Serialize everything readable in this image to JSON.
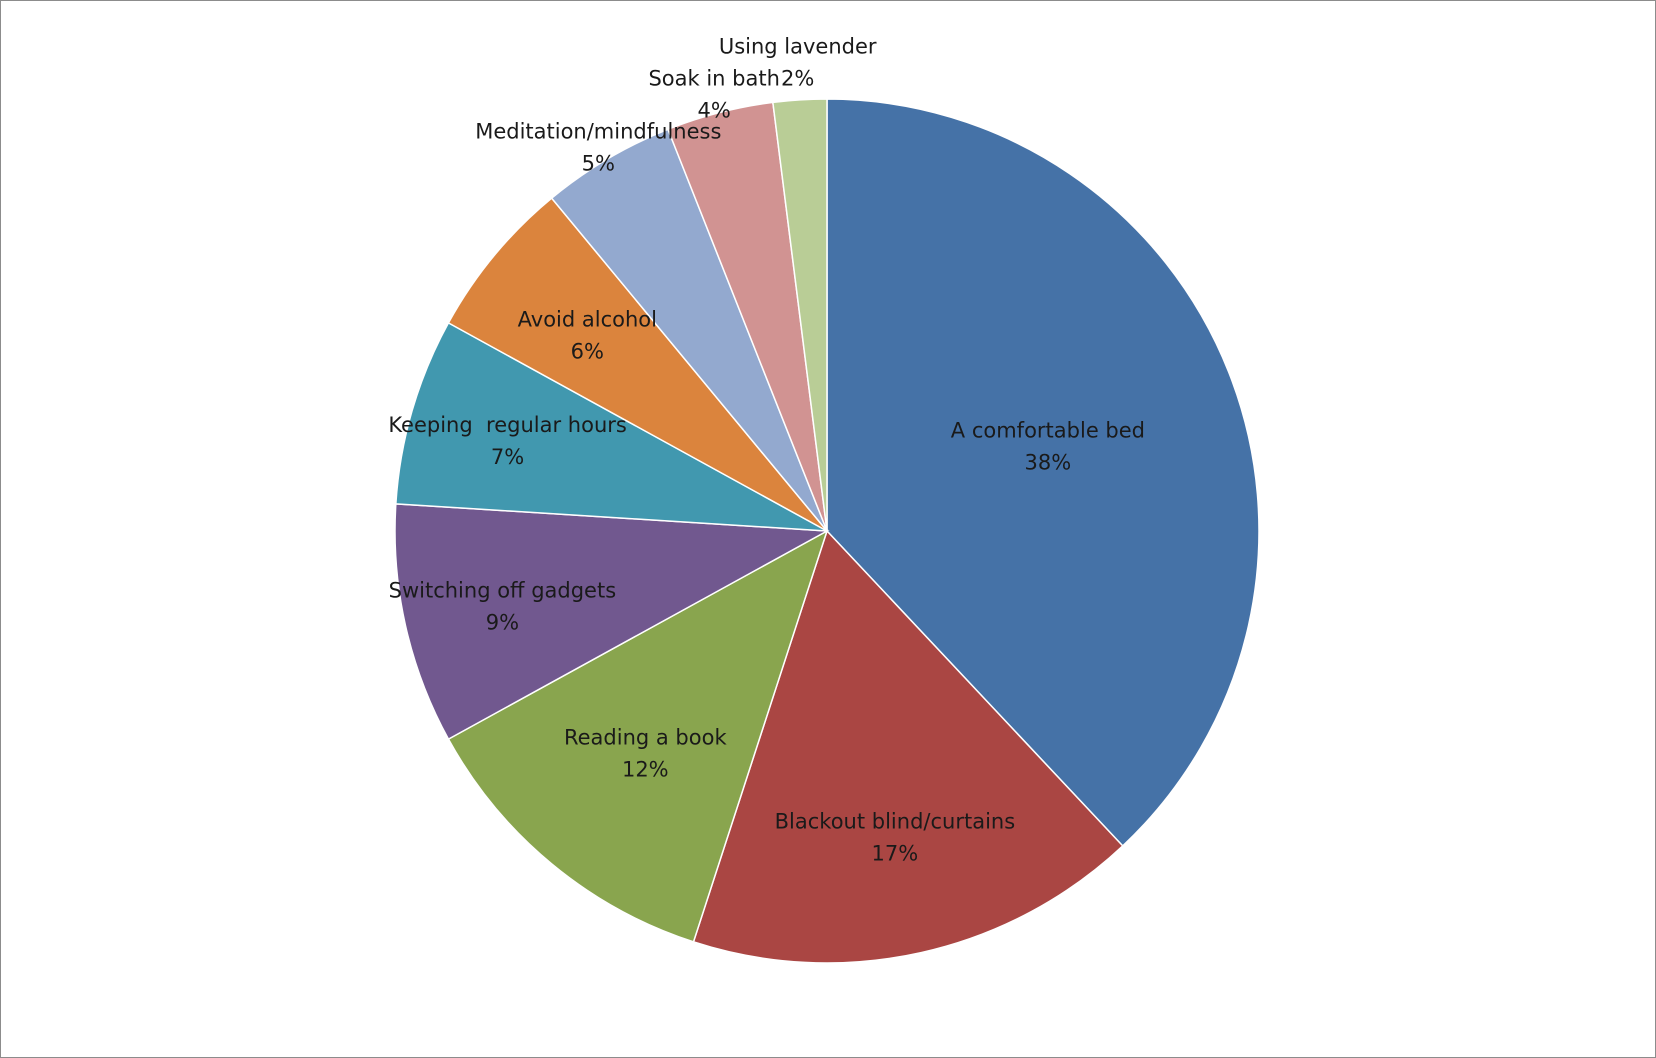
{
  "chart_data": {
    "type": "pie",
    "title": "",
    "start": "12 o'clock",
    "direction": "clockwise",
    "legend": "none",
    "slices": [
      {
        "label": "A comfortable bed",
        "value_text": "38%",
        "value": 38,
        "color": "#4572a7"
      },
      {
        "label": "Blackout blind/curtains",
        "value_text": "17%",
        "value": 17,
        "color": "#aa4643"
      },
      {
        "label": "Reading a book",
        "value_text": "12%",
        "value": 12,
        "color": "#89a54e"
      },
      {
        "label": "Switching off gadgets",
        "value_text": "9%",
        "value": 9,
        "color": "#71588f"
      },
      {
        "label": "Keeping  regular hours",
        "value_text": "7%",
        "value": 7,
        "color": "#4198af"
      },
      {
        "label": "Avoid alcohol",
        "value_text": "6%",
        "value": 6,
        "color": "#db843d"
      },
      {
        "label": "Meditation/mindfulness",
        "value_text": "5%",
        "value": 5,
        "color": "#93a9cf"
      },
      {
        "label": "Soak in bath",
        "value_text": "4%",
        "value": 4,
        "color": "#d19392"
      },
      {
        "label": "Using lavender",
        "value_text": "2%",
        "value": 2,
        "color": "#b9cd96"
      }
    ]
  }
}
